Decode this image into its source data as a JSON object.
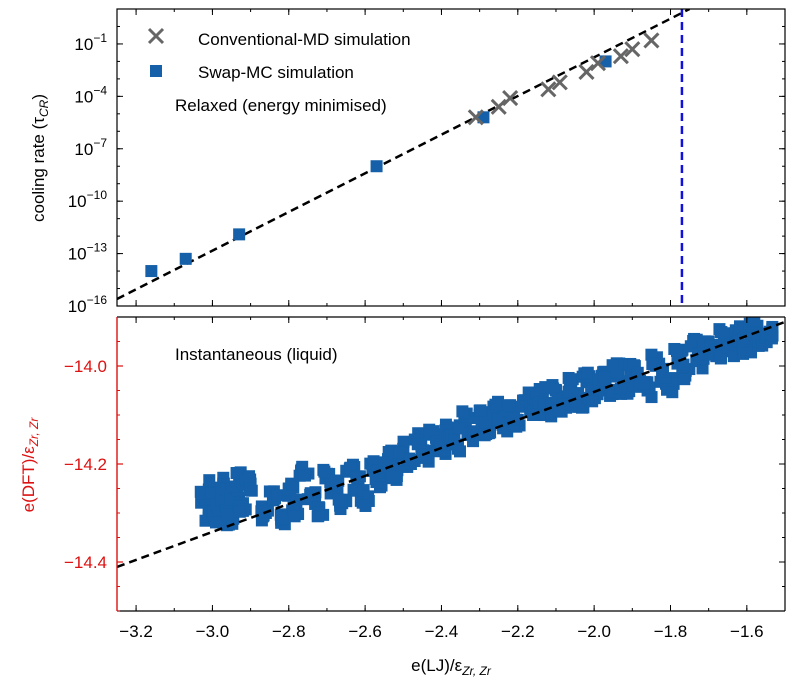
{
  "colors": {
    "conventional": "#666666",
    "swap": "#1560a8",
    "fit_line": "#000000",
    "vline": "#1111dd",
    "red_axis": "#dd1111",
    "axis": "#000000"
  },
  "chart_data": [
    {
      "id": "top",
      "type": "scatter",
      "yscale": "log",
      "xlim": [
        -3.25,
        -1.5
      ],
      "ylog10_lim": [
        -16,
        1
      ],
      "ylabel": "cooling rate (τ",
      "ylabel_sub": "CR",
      "ylabel_close": ")",
      "annotation": "Relaxed (energy minimised)",
      "yticks": [
        {
          "base": "10",
          "exp": "−1",
          "log10": -1
        },
        {
          "base": "10",
          "exp": "−4",
          "log10": -4
        },
        {
          "base": "10",
          "exp": "−7",
          "log10": -7
        },
        {
          "base": "10",
          "exp": "−10",
          "log10": -10
        },
        {
          "base": "10",
          "exp": "−13",
          "log10": -13
        },
        {
          "base": "10",
          "exp": "−16",
          "log10": -16
        }
      ],
      "legend_position": "top-left",
      "series": [
        {
          "name": "Conventional-MD simulation",
          "marker": "x",
          "points": [
            {
              "x": -2.31,
              "log10y": -5.2
            },
            {
              "x": -2.25,
              "log10y": -4.6
            },
            {
              "x": -2.22,
              "log10y": -4.1
            },
            {
              "x": -2.12,
              "log10y": -3.6
            },
            {
              "x": -2.09,
              "log10y": -3.2
            },
            {
              "x": -2.02,
              "log10y": -2.6
            },
            {
              "x": -1.99,
              "log10y": -2.1
            },
            {
              "x": -1.93,
              "log10y": -1.7
            },
            {
              "x": -1.9,
              "log10y": -1.3
            },
            {
              "x": -1.85,
              "log10y": -0.8
            }
          ]
        },
        {
          "name": "Swap-MC simulation",
          "marker": "square",
          "points": [
            {
              "x": -3.16,
              "log10y": -14.0
            },
            {
              "x": -3.07,
              "log10y": -13.3
            },
            {
              "x": -2.93,
              "log10y": -11.9
            },
            {
              "x": -2.57,
              "log10y": -8.0
            },
            {
              "x": -2.29,
              "log10y": -5.2
            },
            {
              "x": -1.97,
              "log10y": -2.0
            }
          ]
        }
      ],
      "fit_line": {
        "style": "dashed",
        "x": [
          -3.25,
          -1.75
        ],
        "log10y": [
          -15.6,
          1.0
        ]
      },
      "vertical_line": {
        "style": "dashed",
        "x": -1.77
      }
    },
    {
      "id": "bottom",
      "type": "scatter",
      "xlim": [
        -3.25,
        -1.5
      ],
      "ylim": [
        -14.5,
        -13.9
      ],
      "xlabel": "e(LJ)/ε",
      "xlabel_sub": "Zr, Zr",
      "ylabel": "e(DFT)/ε",
      "ylabel_sub": "Zr, Zr",
      "annotation": "Instantaneous (liquid)",
      "xticks": [
        "−3.2",
        "−3.0",
        "−2.8",
        "−2.6",
        "−2.4",
        "−2.2",
        "−2.0",
        "−1.8",
        "−1.6"
      ],
      "xtick_values": [
        -3.2,
        -3.0,
        -2.8,
        -2.6,
        -2.4,
        -2.2,
        -2.0,
        -1.8,
        -1.6
      ],
      "yticks": [
        "−14.0",
        "−14.2",
        "−14.4"
      ],
      "ytick_values": [
        -14.0,
        -14.2,
        -14.4
      ],
      "series": [
        {
          "name": "Swap-MC simulation",
          "marker": "square",
          "points": [
            {
              "x": -3.02,
              "y": -14.27
            },
            {
              "x": -3.01,
              "y": -14.3
            },
            {
              "x": -3.0,
              "y": -14.25
            },
            {
              "x": -2.99,
              "y": -14.31
            },
            {
              "x": -2.98,
              "y": -14.28
            },
            {
              "x": -2.97,
              "y": -14.24
            },
            {
              "x": -2.96,
              "y": -14.29
            },
            {
              "x": -2.95,
              "y": -14.32
            },
            {
              "x": -2.94,
              "y": -14.26
            },
            {
              "x": -2.93,
              "y": -14.23
            },
            {
              "x": -2.92,
              "y": -14.28
            },
            {
              "x": -2.9,
              "y": -14.24
            },
            {
              "x": -2.86,
              "y": -14.3
            },
            {
              "x": -2.84,
              "y": -14.27
            },
            {
              "x": -2.82,
              "y": -14.32
            },
            {
              "x": -2.8,
              "y": -14.25
            },
            {
              "x": -2.78,
              "y": -14.29
            },
            {
              "x": -2.76,
              "y": -14.22
            },
            {
              "x": -2.74,
              "y": -14.26
            },
            {
              "x": -2.72,
              "y": -14.29
            },
            {
              "x": -2.7,
              "y": -14.22
            },
            {
              "x": -2.68,
              "y": -14.25
            },
            {
              "x": -2.66,
              "y": -14.28
            },
            {
              "x": -2.64,
              "y": -14.21
            },
            {
              "x": -2.62,
              "y": -14.24
            },
            {
              "x": -2.6,
              "y": -14.27
            },
            {
              "x": -2.58,
              "y": -14.2
            },
            {
              "x": -2.56,
              "y": -14.23
            },
            {
              "x": -2.54,
              "y": -14.19
            },
            {
              "x": -2.52,
              "y": -14.22
            },
            {
              "x": -2.5,
              "y": -14.17
            },
            {
              "x": -2.48,
              "y": -14.2
            },
            {
              "x": -2.46,
              "y": -14.15
            },
            {
              "x": -2.44,
              "y": -14.18
            },
            {
              "x": -2.42,
              "y": -14.14
            },
            {
              "x": -2.4,
              "y": -14.17
            },
            {
              "x": -2.38,
              "y": -14.13
            },
            {
              "x": -2.36,
              "y": -14.16
            },
            {
              "x": -2.34,
              "y": -14.11
            },
            {
              "x": -2.32,
              "y": -14.14
            },
            {
              "x": -2.3,
              "y": -14.1
            },
            {
              "x": -2.28,
              "y": -14.13
            },
            {
              "x": -2.26,
              "y": -14.09
            },
            {
              "x": -2.24,
              "y": -14.12
            },
            {
              "x": -2.22,
              "y": -14.08
            },
            {
              "x": -2.2,
              "y": -14.11
            },
            {
              "x": -2.18,
              "y": -14.07
            },
            {
              "x": -2.16,
              "y": -14.1
            },
            {
              "x": -2.14,
              "y": -14.06
            },
            {
              "x": -2.12,
              "y": -14.09
            },
            {
              "x": -2.1,
              "y": -14.05
            },
            {
              "x": -2.08,
              "y": -14.08
            },
            {
              "x": -2.06,
              "y": -14.04
            },
            {
              "x": -2.04,
              "y": -14.07
            },
            {
              "x": -2.02,
              "y": -14.03
            },
            {
              "x": -2.0,
              "y": -14.06
            },
            {
              "x": -1.98,
              "y": -14.02
            },
            {
              "x": -1.96,
              "y": -14.05
            },
            {
              "x": -1.94,
              "y": -14.01
            },
            {
              "x": -1.92,
              "y": -14.04
            },
            {
              "x": -1.9,
              "y": -14.0
            },
            {
              "x": -1.88,
              "y": -14.03
            },
            {
              "x": -1.86,
              "y": -14.05
            },
            {
              "x": -1.84,
              "y": -13.99
            },
            {
              "x": -1.82,
              "y": -14.02
            },
            {
              "x": -1.8,
              "y": -14.04
            },
            {
              "x": -1.78,
              "y": -13.98
            },
            {
              "x": -1.76,
              "y": -14.01
            },
            {
              "x": -1.74,
              "y": -13.96
            },
            {
              "x": -1.72,
              "y": -13.99
            },
            {
              "x": -1.7,
              "y": -13.95
            },
            {
              "x": -1.68,
              "y": -13.98
            },
            {
              "x": -1.66,
              "y": -13.94
            },
            {
              "x": -1.64,
              "y": -13.97
            },
            {
              "x": -1.62,
              "y": -13.93
            },
            {
              "x": -1.6,
              "y": -13.96
            },
            {
              "x": -1.58,
              "y": -13.92
            },
            {
              "x": -1.56,
              "y": -13.95
            },
            {
              "x": -1.54,
              "y": -13.93
            }
          ]
        }
      ],
      "fit_line": {
        "style": "dashed",
        "x": [
          -3.25,
          -1.5
        ],
        "y": [
          -14.41,
          -13.91
        ]
      }
    }
  ]
}
